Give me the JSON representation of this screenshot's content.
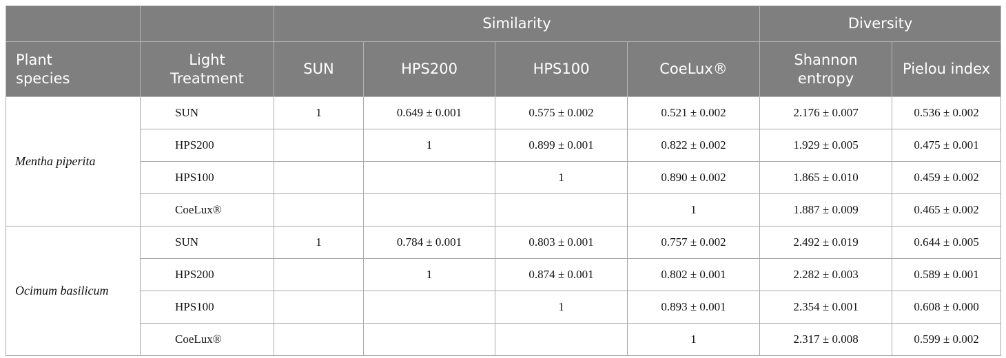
{
  "table": {
    "group_headers": [
      "Similarity",
      "Diversity"
    ],
    "columns": [
      "Plant species",
      "Light Treatment",
      "SUN",
      "HPS200",
      "HPS100",
      "CoeLux®",
      "Shannon entropy",
      "Pielou index"
    ],
    "groups": [
      {
        "species": "Mentha piperita",
        "rows": [
          {
            "treatment": "SUN",
            "similarity": [
              "1",
              "0.649 ± 0.001",
              "0.575 ± 0.002",
              "0.521 ± 0.002"
            ],
            "diversity": [
              "2.176 ± 0.007",
              "0.536 ± 0.002"
            ]
          },
          {
            "treatment": "HPS200",
            "similarity": [
              "1",
              "0.899 ± 0.001",
              "0.822 ± 0.002"
            ],
            "diversity": [
              "1.929 ± 0.005",
              "0.475 ± 0.001"
            ]
          },
          {
            "treatment": "HPS100",
            "similarity": [
              "1",
              "0.890 ± 0.002"
            ],
            "diversity": [
              "1.865 ± 0.010",
              "0.459 ± 0.002"
            ]
          },
          {
            "treatment": "CoeLux®",
            "similarity": [
              "1"
            ],
            "diversity": [
              "1.887 ± 0.009",
              "0.465 ± 0.002"
            ]
          }
        ]
      },
      {
        "species": "Ocimum basilicum",
        "rows": [
          {
            "treatment": "SUN",
            "similarity": [
              "1",
              "0.784 ± 0.001",
              "0.803 ± 0.001",
              "0.757 ± 0.002"
            ],
            "diversity": [
              "2.492 ± 0.019",
              "0.644 ± 0.005"
            ]
          },
          {
            "treatment": "HPS200",
            "similarity": [
              "1",
              "0.874 ± 0.001",
              "0.802 ± 0.001"
            ],
            "diversity": [
              "2.282 ± 0.003",
              "0.589 ± 0.001"
            ]
          },
          {
            "treatment": "HPS100",
            "similarity": [
              "1",
              "0.893 ± 0.001"
            ],
            "diversity": [
              "2.354 ± 0.001",
              "0.608 ± 0.000"
            ]
          },
          {
            "treatment": "CoeLux®",
            "similarity": [
              "1"
            ],
            "diversity": [
              "2.317 ± 0.008",
              "0.599 ± 0.002"
            ]
          }
        ]
      }
    ]
  }
}
